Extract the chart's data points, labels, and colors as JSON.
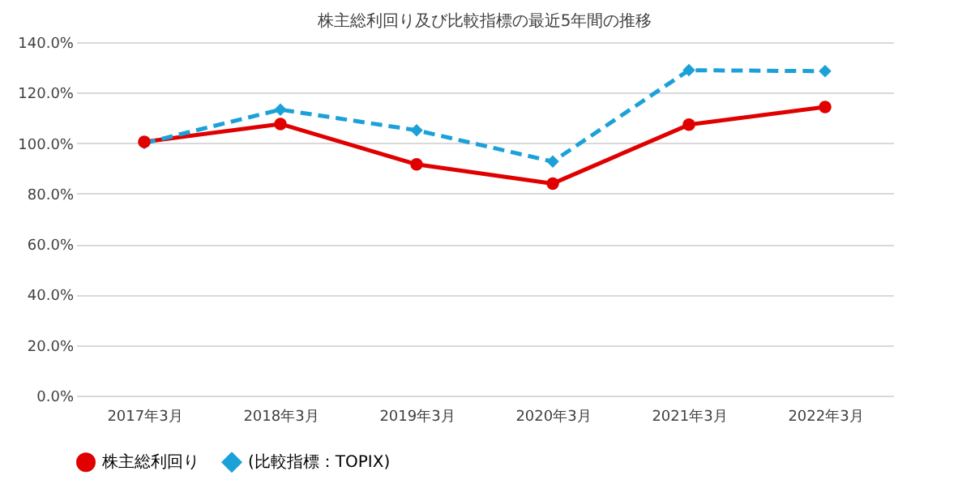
{
  "chart_data": {
    "type": "line",
    "title": "株主総利回り及び比較指標の最近5年間の推移",
    "categories": [
      "2017年3月",
      "2018年3月",
      "2019年3月",
      "2020年3月",
      "2021年3月",
      "2022年3月"
    ],
    "series": [
      {
        "name": "株主総利回り",
        "color": "#e00000",
        "marker": "circle",
        "line_style": "solid",
        "values": [
          100.5,
          107.6,
          91.6,
          84.0,
          107.3,
          114.3
        ]
      },
      {
        "name": "(比較指標：TOPIX)",
        "color": "#1ba1d8",
        "marker": "diamond",
        "line_style": "dashed",
        "values": [
          100.0,
          113.3,
          105.1,
          92.7,
          128.9,
          128.5
        ]
      }
    ],
    "ylim": [
      0,
      140
    ],
    "yticks": [
      {
        "value": 0,
        "label": "0.0%"
      },
      {
        "value": 20,
        "label": "20.0%"
      },
      {
        "value": 40,
        "label": "40.0%"
      },
      {
        "value": 60,
        "label": "60.0%"
      },
      {
        "value": 80,
        "label": "80.0%"
      },
      {
        "value": 100,
        "label": "100.0%"
      },
      {
        "value": 120,
        "label": "120.0%"
      },
      {
        "value": 140,
        "label": "140.0%"
      }
    ],
    "grid": "y",
    "legend": "bottom"
  }
}
